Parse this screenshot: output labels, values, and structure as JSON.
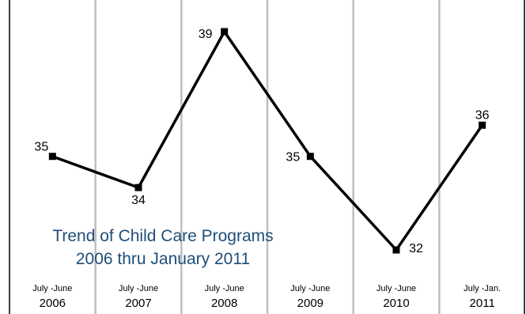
{
  "chart_data": {
    "type": "line",
    "categories": [
      {
        "period": "July -June",
        "year": "2006"
      },
      {
        "period": "July -June",
        "year": "2007"
      },
      {
        "period": "July -June",
        "year": "2008"
      },
      {
        "period": "July -June",
        "year": "2009"
      },
      {
        "period": "July -June",
        "year": "2010"
      },
      {
        "period": "July -Jan.",
        "year": "2011"
      }
    ],
    "values": [
      35,
      34,
      39,
      35,
      32,
      36
    ],
    "value_labels": [
      "35",
      "34",
      "39",
      "35",
      "32",
      "36"
    ],
    "title_line1": "Trend of Child Care Programs",
    "title_line2": "2006 thru January 2011",
    "xlabel": "",
    "ylabel": "",
    "ylim": [
      32,
      39
    ],
    "grid": "vertical",
    "legend": "none",
    "colors": {
      "line": "#000000",
      "marker": "#000000",
      "grid": "#bfbfbf",
      "frame": "#000000",
      "title": "#1f4e79"
    }
  }
}
